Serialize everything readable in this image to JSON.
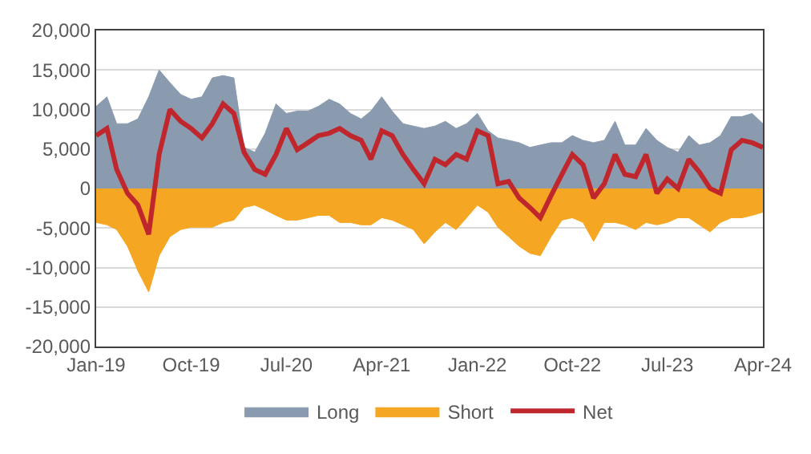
{
  "chart_data": {
    "type": "area",
    "x": [
      "2019-01",
      "2019-02",
      "2019-03",
      "2019-04",
      "2019-05",
      "2019-06",
      "2019-07",
      "2019-08",
      "2019-09",
      "2019-10",
      "2019-11",
      "2019-12",
      "2020-01",
      "2020-02",
      "2020-03",
      "2020-04",
      "2020-05",
      "2020-06",
      "2020-07",
      "2020-08",
      "2020-09",
      "2020-10",
      "2020-11",
      "2020-12",
      "2021-01",
      "2021-02",
      "2021-03",
      "2021-04",
      "2021-05",
      "2021-06",
      "2021-07",
      "2021-08",
      "2021-09",
      "2021-10",
      "2021-11",
      "2021-12",
      "2022-01",
      "2022-02",
      "2022-03",
      "2022-04",
      "2022-05",
      "2022-06",
      "2022-07",
      "2022-08",
      "2022-09",
      "2022-10",
      "2022-11",
      "2022-12",
      "2023-01",
      "2023-02",
      "2023-03",
      "2023-04",
      "2023-05",
      "2023-06",
      "2023-07",
      "2023-08",
      "2023-09",
      "2023-10",
      "2023-11",
      "2023-12",
      "2024-01",
      "2024-02",
      "2024-03",
      "2024-04"
    ],
    "series": [
      {
        "name": "Long",
        "color": "#8a9bb0",
        "values": [
          10400,
          11600,
          8200,
          8200,
          8800,
          11600,
          15000,
          13400,
          11900,
          11300,
          11600,
          14000,
          14300,
          14000,
          5200,
          4600,
          7000,
          10700,
          9500,
          9800,
          9800,
          10400,
          11300,
          10700,
          9500,
          8800,
          9800,
          11600,
          9800,
          8200,
          7900,
          7600,
          7900,
          8500,
          7600,
          8200,
          9500,
          7300,
          6400,
          6100,
          5800,
          5200,
          5500,
          5800,
          5800,
          6700,
          6100,
          5800,
          6100,
          8500,
          5500,
          5500,
          7600,
          6100,
          5200,
          4600,
          6700,
          5500,
          5800,
          6700,
          9100,
          9100,
          9500,
          8200
        ]
      },
      {
        "name": "Short",
        "color": "#f5a623",
        "values": [
          -4300,
          -4600,
          -5200,
          -7300,
          -10400,
          -13100,
          -8500,
          -6100,
          -5200,
          -4900,
          -4900,
          -4900,
          -4300,
          -4000,
          -2400,
          -2100,
          -2700,
          -3400,
          -4000,
          -4000,
          -3700,
          -3400,
          -3400,
          -4300,
          -4300,
          -4600,
          -4600,
          -3700,
          -4000,
          -4600,
          -5200,
          -7000,
          -5500,
          -4300,
          -5200,
          -3700,
          -2100,
          -3000,
          -4900,
          -6100,
          -7300,
          -8200,
          -8500,
          -6100,
          -4000,
          -3700,
          -4300,
          -6700,
          -4300,
          -4300,
          -4600,
          -5200,
          -4300,
          -4600,
          -4300,
          -3700,
          -3700,
          -4600,
          -5500,
          -4300,
          -3700,
          -3700,
          -3400,
          -3000
        ]
      },
      {
        "name": "Net",
        "type": "line",
        "color": "#c0272d",
        "values": [
          6700,
          7600,
          2400,
          -600,
          -2100,
          -5800,
          4300,
          10000,
          8500,
          7600,
          6400,
          8200,
          10700,
          9500,
          4600,
          2400,
          1800,
          4300,
          7600,
          4900,
          5800,
          6700,
          7000,
          7600,
          6700,
          6100,
          3700,
          7300,
          6700,
          4300,
          2400,
          600,
          3700,
          3000,
          4300,
          3700,
          7300,
          6700,
          600,
          900,
          -1200,
          -2400,
          -3700,
          -900,
          1800,
          4300,
          3000,
          -1200,
          600,
          4300,
          1800,
          1500,
          4300,
          -600,
          1200,
          0,
          3700,
          2100,
          0,
          -600,
          4900,
          6100,
          5800,
          5200
        ]
      }
    ],
    "xlim": [
      "2019-01",
      "2024-04"
    ],
    "xticks": [
      {
        "value": "2019-01",
        "label": "Jan-19"
      },
      {
        "value": "2019-10",
        "label": "Oct-19"
      },
      {
        "value": "2020-07",
        "label": "Jul-20"
      },
      {
        "value": "2021-04",
        "label": "Apr-21"
      },
      {
        "value": "2022-01",
        "label": "Jan-22"
      },
      {
        "value": "2022-10",
        "label": "Oct-22"
      },
      {
        "value": "2023-07",
        "label": "Jul-23"
      },
      {
        "value": "2024-04",
        "label": "Apr-24"
      }
    ],
    "ylim": [
      -20000,
      20000
    ],
    "yticks": [
      {
        "value": -20000,
        "label": "-20,000"
      },
      {
        "value": -15000,
        "label": "-15,000"
      },
      {
        "value": -10000,
        "label": "-10,000"
      },
      {
        "value": -5000,
        "label": "-5,000"
      },
      {
        "value": 0,
        "label": "0"
      },
      {
        "value": 5000,
        "label": "5,000"
      },
      {
        "value": 10000,
        "label": "10,000"
      },
      {
        "value": 15000,
        "label": "15,000"
      },
      {
        "value": 20000,
        "label": "20,000"
      }
    ],
    "grid": "y",
    "legend": "bottom",
    "marker": "none"
  }
}
